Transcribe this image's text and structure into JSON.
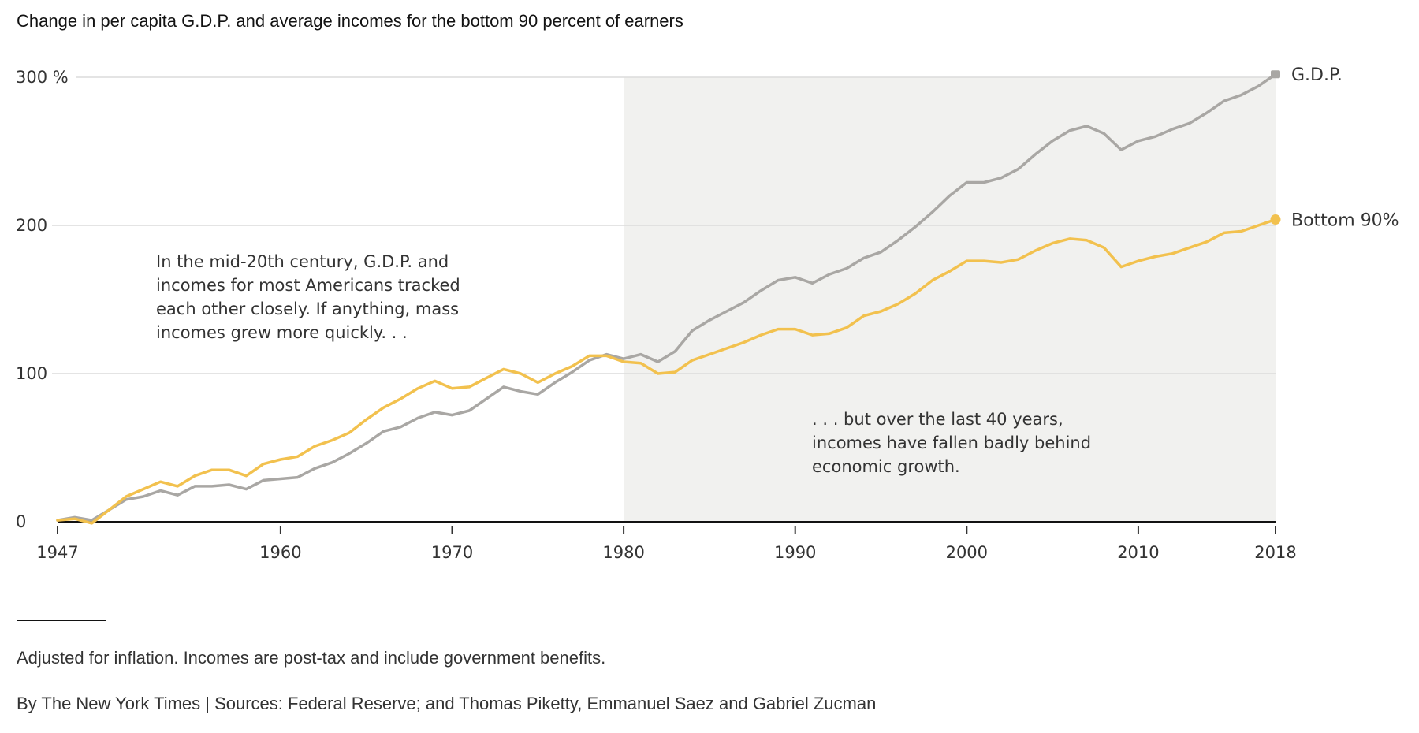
{
  "chart_data": {
    "type": "line",
    "title": "Change in per capita G.D.P. and average incomes for the bottom 90 percent of earners",
    "xlabel": "",
    "ylabel": "",
    "xlim": [
      1947,
      2018
    ],
    "ylim": [
      0,
      300
    ],
    "y_ticks": [
      {
        "value": 0,
        "label": "0"
      },
      {
        "value": 100,
        "label": "100"
      },
      {
        "value": 200,
        "label": "200"
      },
      {
        "value": 300,
        "label": "300 %"
      }
    ],
    "x_ticks": [
      {
        "value": 1947,
        "label": "1947"
      },
      {
        "value": 1960,
        "label": "1960"
      },
      {
        "value": 1970,
        "label": "1970"
      },
      {
        "value": 1980,
        "label": "1980"
      },
      {
        "value": 1990,
        "label": "1990"
      },
      {
        "value": 2000,
        "label": "2000"
      },
      {
        "value": 2010,
        "label": "2010"
      },
      {
        "value": 2018,
        "label": "2018"
      }
    ],
    "grid": true,
    "shaded_region": {
      "from": 1980,
      "to": 2018,
      "color": "#f1f1ef"
    },
    "x": [
      1947,
      1948,
      1949,
      1950,
      1951,
      1952,
      1953,
      1954,
      1955,
      1956,
      1957,
      1958,
      1959,
      1960,
      1961,
      1962,
      1963,
      1964,
      1965,
      1966,
      1967,
      1968,
      1969,
      1970,
      1971,
      1972,
      1973,
      1974,
      1975,
      1976,
      1977,
      1978,
      1979,
      1980,
      1981,
      1982,
      1983,
      1984,
      1985,
      1986,
      1987,
      1988,
      1989,
      1990,
      1991,
      1992,
      1993,
      1994,
      1995,
      1996,
      1997,
      1998,
      1999,
      2000,
      2001,
      2002,
      2003,
      2004,
      2005,
      2006,
      2007,
      2008,
      2009,
      2010,
      2011,
      2012,
      2013,
      2014,
      2015,
      2016,
      2017,
      2018
    ],
    "series": [
      {
        "name": "G.D.P.",
        "label": "G.D.P.",
        "color": "#a9a7a4",
        "end_marker": "square",
        "values": [
          1,
          3,
          1,
          8,
          15,
          17,
          21,
          18,
          24,
          24,
          25,
          22,
          28,
          29,
          30,
          36,
          40,
          46,
          53,
          61,
          64,
          70,
          74,
          72,
          75,
          83,
          91,
          88,
          86,
          94,
          101,
          109,
          113,
          110,
          113,
          108,
          115,
          129,
          136,
          142,
          148,
          156,
          163,
          165,
          161,
          167,
          171,
          178,
          182,
          190,
          199,
          209,
          220,
          229,
          229,
          232,
          238,
          248,
          257,
          264,
          267,
          262,
          251,
          257,
          260,
          265,
          269,
          276,
          284,
          288,
          294,
          302
        ]
      },
      {
        "name": "Bottom 90%",
        "label": "Bottom 90%",
        "color": "#f2c14e",
        "end_marker": "circle",
        "values": [
          1,
          2,
          -1,
          8,
          17,
          22,
          27,
          24,
          31,
          35,
          35,
          31,
          39,
          42,
          44,
          51,
          55,
          60,
          69,
          77,
          83,
          90,
          95,
          90,
          91,
          97,
          103,
          100,
          94,
          100,
          105,
          112,
          112,
          108,
          107,
          100,
          101,
          109,
          113,
          117,
          121,
          126,
          130,
          130,
          126,
          127,
          131,
          139,
          142,
          147,
          154,
          163,
          169,
          176,
          176,
          175,
          177,
          183,
          188,
          191,
          190,
          185,
          172,
          176,
          179,
          181,
          185,
          189,
          195,
          196,
          200,
          204
        ]
      }
    ],
    "annotations": [
      {
        "id": "left",
        "text": [
          "In the mid-20th century, G.D.P. and",
          "incomes for most Americans tracked",
          "each other closely. If anything, mass",
          "incomes grew more quickly. . ."
        ]
      },
      {
        "id": "right",
        "text": [
          ". . . but over the last 40 years,",
          "incomes have fallen badly behind",
          "economic growth."
        ]
      }
    ],
    "footnotes": {
      "note": "Adjusted for inflation. Incomes are post-tax and include government benefits.",
      "source": "By The New York Times | Sources: Federal Reserve; and Thomas Piketty, Emmanuel Saez and Gabriel Zucman"
    }
  }
}
